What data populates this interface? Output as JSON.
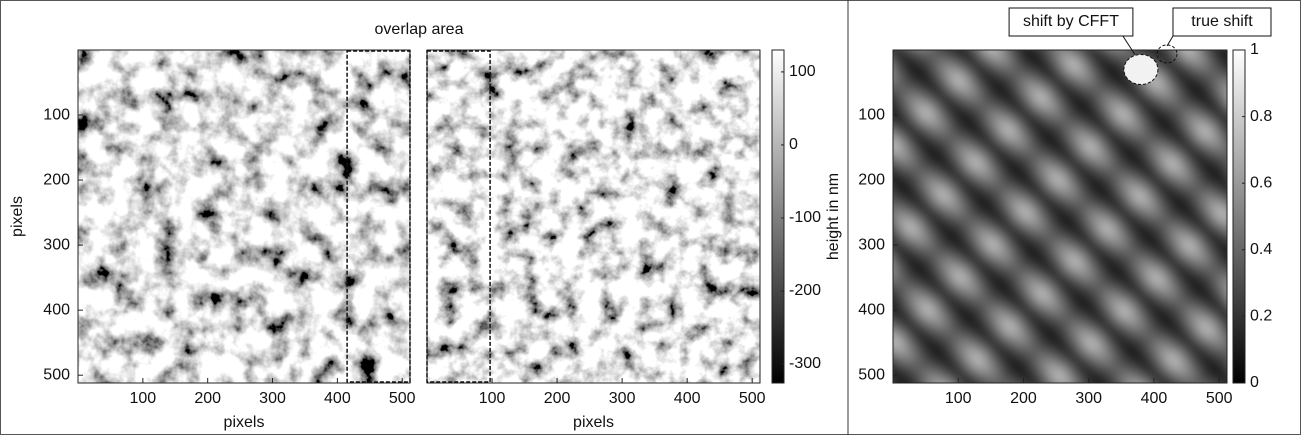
{
  "figure_title": "overlap area",
  "chart_data": [
    {
      "type": "heatmap",
      "xlabel": "pixels",
      "ylabel": "pixels",
      "xlim": [
        0,
        512
      ],
      "ylim": [
        512,
        0
      ],
      "xticks": [
        100,
        200,
        300,
        400,
        500
      ],
      "yticks": [
        100,
        200,
        300,
        400,
        500
      ],
      "overlap_region": [
        415,
        512
      ],
      "colorbar": {
        "label": "height in nm",
        "clim": [
          -326,
          130
        ],
        "ticks": [
          100,
          0,
          -100,
          -200,
          -300
        ]
      }
    },
    {
      "type": "heatmap",
      "xlabel": "pixels",
      "xlim": [
        0,
        512
      ],
      "ylim": [
        512,
        0
      ],
      "xticks": [
        100,
        200,
        300,
        400,
        500
      ],
      "overlap_region": [
        0,
        97
      ]
    },
    {
      "type": "heatmap",
      "xlim": [
        0,
        512
      ],
      "ylim": [
        512,
        0
      ],
      "xticks": [
        100,
        200,
        300,
        400,
        500
      ],
      "yticks": [
        100,
        200,
        300,
        400,
        500
      ],
      "colorbar": {
        "clim": [
          0,
          1
        ],
        "ticks": [
          0,
          0.2,
          0.4,
          0.6,
          0.8,
          1
        ]
      },
      "annotations": [
        {
          "text": "shift by CFFT",
          "x": 380,
          "y": 30
        },
        {
          "text": "true shift",
          "x": 420,
          "y": 3
        }
      ]
    }
  ]
}
